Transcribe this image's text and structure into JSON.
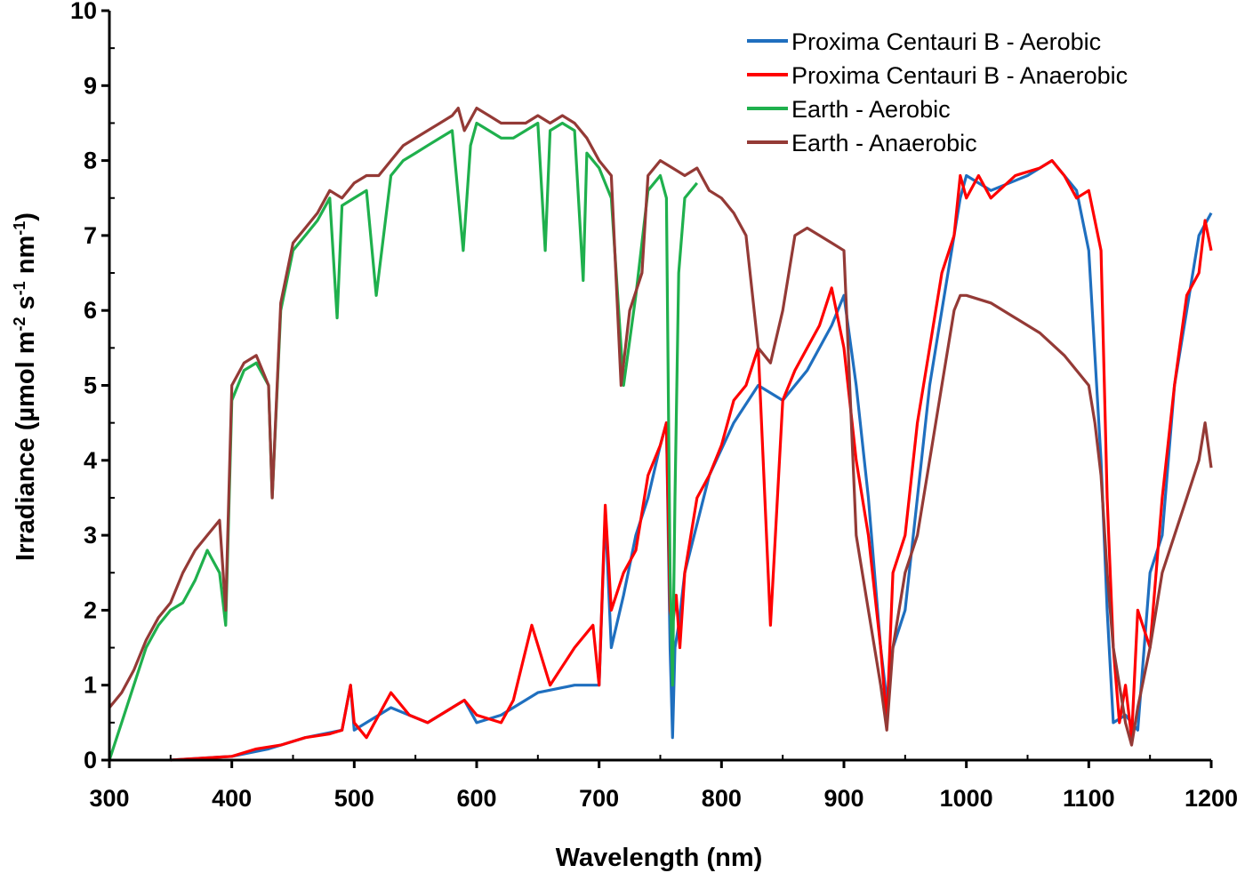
{
  "chart_data": {
    "type": "line",
    "title": "",
    "xlabel": "Wavelength (nm)",
    "ylabel_parts": [
      "Irradiance (µmol m",
      "-2",
      " s",
      "-1",
      " nm",
      "-1",
      ")"
    ],
    "xlim": [
      300,
      1200
    ],
    "ylim": [
      0,
      10
    ],
    "x_ticks": [
      300,
      400,
      500,
      600,
      700,
      800,
      900,
      1000,
      1100,
      1200
    ],
    "y_ticks": [
      0,
      1,
      2,
      3,
      4,
      5,
      6,
      7,
      8,
      9,
      10
    ],
    "grid": false,
    "legend_position": "top-right",
    "series": [
      {
        "name": "Proxima Centauri B - Aerobic",
        "color": "#1f6fbf",
        "x": [
          350,
          400,
          430,
          460,
          490,
          497,
          500,
          530,
          560,
          590,
          600,
          620,
          650,
          680,
          700,
          705,
          710,
          720,
          730,
          740,
          750,
          755,
          758,
          760,
          762,
          765,
          770,
          790,
          810,
          830,
          850,
          870,
          890,
          900,
          910,
          920,
          930,
          935,
          940,
          950,
          960,
          970,
          980,
          995,
          1000,
          1020,
          1050,
          1070,
          1090,
          1100,
          1110,
          1115,
          1120,
          1130,
          1140,
          1150,
          1160,
          1170,
          1180,
          1190,
          1200
        ],
        "y": [
          0,
          0.05,
          0.15,
          0.3,
          0.4,
          1.0,
          0.4,
          0.7,
          0.5,
          0.8,
          0.5,
          0.6,
          0.9,
          1.0,
          1.0,
          3.3,
          1.5,
          2.2,
          3.0,
          3.5,
          4.2,
          4.5,
          1.5,
          0.3,
          1.5,
          1.8,
          2.5,
          3.8,
          4.5,
          5.0,
          4.8,
          5.2,
          5.8,
          6.2,
          5.0,
          3.5,
          1.5,
          0.8,
          1.5,
          2.0,
          3.5,
          5.0,
          6.0,
          7.5,
          7.8,
          7.6,
          7.8,
          8.0,
          7.6,
          6.8,
          4.0,
          2.0,
          0.5,
          0.6,
          0.4,
          2.5,
          3.0,
          5.0,
          6.0,
          7.0,
          7.3
        ]
      },
      {
        "name": "Proxima Centauri B - Anaerobic",
        "color": "#ff0000",
        "x": [
          350,
          380,
          400,
          420,
          440,
          460,
          480,
          490,
          497,
          500,
          510,
          530,
          545,
          560,
          580,
          590,
          600,
          620,
          630,
          645,
          660,
          680,
          695,
          700,
          705,
          710,
          720,
          730,
          740,
          750,
          755,
          758,
          760,
          763,
          766,
          770,
          780,
          790,
          800,
          810,
          820,
          830,
          840,
          850,
          860,
          870,
          880,
          890,
          900,
          910,
          920,
          930,
          935,
          940,
          950,
          960,
          970,
          980,
          990,
          995,
          1000,
          1010,
          1020,
          1040,
          1060,
          1070,
          1080,
          1090,
          1100,
          1110,
          1115,
          1120,
          1125,
          1130,
          1135,
          1140,
          1150,
          1160,
          1170,
          1180,
          1190,
          1195,
          1200
        ],
        "y": [
          0,
          0.03,
          0.05,
          0.15,
          0.2,
          0.3,
          0.35,
          0.4,
          1.0,
          0.5,
          0.3,
          0.9,
          0.6,
          0.5,
          0.7,
          0.8,
          0.6,
          0.5,
          0.8,
          1.8,
          1.0,
          1.5,
          1.8,
          1.0,
          3.4,
          2.0,
          2.5,
          2.8,
          3.8,
          4.2,
          4.5,
          2.0,
          1.8,
          2.2,
          1.5,
          2.5,
          3.5,
          3.8,
          4.2,
          4.8,
          5.0,
          5.5,
          1.8,
          4.8,
          5.2,
          5.5,
          5.8,
          6.3,
          5.5,
          4.0,
          3.0,
          1.5,
          0.5,
          2.5,
          3.0,
          4.5,
          5.5,
          6.5,
          7.0,
          7.8,
          7.5,
          7.8,
          7.5,
          7.8,
          7.9,
          8.0,
          7.8,
          7.5,
          7.6,
          6.8,
          3.5,
          1.5,
          0.5,
          1.0,
          0.3,
          2.0,
          1.5,
          3.5,
          5.0,
          6.2,
          6.5,
          7.2,
          6.8
        ]
      },
      {
        "name": "Earth - Aerobic",
        "color": "#1fb04d",
        "x": [
          300,
          310,
          320,
          330,
          340,
          350,
          360,
          370,
          380,
          390,
          395,
          400,
          410,
          420,
          430,
          433,
          440,
          450,
          460,
          470,
          480,
          486,
          490,
          500,
          510,
          518,
          530,
          540,
          550,
          560,
          570,
          580,
          589,
          595,
          600,
          610,
          620,
          630,
          640,
          650,
          656,
          660,
          670,
          680,
          687,
          690,
          700,
          710,
          720,
          730,
          740,
          750,
          755,
          758,
          760,
          762,
          765,
          770,
          780
        ],
        "y": [
          0.0,
          0.5,
          1.0,
          1.5,
          1.8,
          2.0,
          2.1,
          2.4,
          2.8,
          2.5,
          1.8,
          4.8,
          5.2,
          5.3,
          5.0,
          3.5,
          6.0,
          6.8,
          7.0,
          7.2,
          7.5,
          5.9,
          7.4,
          7.5,
          7.6,
          6.2,
          7.8,
          8.0,
          8.1,
          8.2,
          8.3,
          8.4,
          6.8,
          8.2,
          8.5,
          8.4,
          8.3,
          8.3,
          8.4,
          8.5,
          6.8,
          8.4,
          8.5,
          8.4,
          6.4,
          8.1,
          7.9,
          7.5,
          5.0,
          6.2,
          7.6,
          7.8,
          7.5,
          2.5,
          1.0,
          3.5,
          6.5,
          7.5,
          7.7
        ]
      },
      {
        "name": "Earth - Anaerobic",
        "color": "#943a36",
        "x": [
          300,
          310,
          320,
          330,
          340,
          350,
          360,
          370,
          380,
          390,
          395,
          400,
          410,
          420,
          430,
          433,
          440,
          450,
          460,
          470,
          480,
          490,
          500,
          510,
          520,
          530,
          540,
          550,
          560,
          570,
          580,
          585,
          590,
          600,
          610,
          620,
          630,
          640,
          650,
          660,
          670,
          680,
          690,
          700,
          710,
          718,
          725,
          735,
          740,
          750,
          760,
          770,
          780,
          790,
          800,
          810,
          820,
          830,
          840,
          850,
          860,
          870,
          880,
          890,
          900,
          910,
          920,
          930,
          935,
          940,
          950,
          960,
          970,
          980,
          990,
          995,
          1000,
          1020,
          1040,
          1060,
          1080,
          1100,
          1105,
          1110,
          1115,
          1120,
          1130,
          1135,
          1140,
          1150,
          1160,
          1170,
          1180,
          1190,
          1195,
          1200
        ],
        "y": [
          0.7,
          0.9,
          1.2,
          1.6,
          1.9,
          2.1,
          2.5,
          2.8,
          3.0,
          3.2,
          2.0,
          5.0,
          5.3,
          5.4,
          5.0,
          3.5,
          6.1,
          6.9,
          7.1,
          7.3,
          7.6,
          7.5,
          7.7,
          7.8,
          7.8,
          8.0,
          8.2,
          8.3,
          8.4,
          8.5,
          8.6,
          8.7,
          8.4,
          8.7,
          8.6,
          8.5,
          8.5,
          8.5,
          8.6,
          8.5,
          8.6,
          8.5,
          8.3,
          8.0,
          7.8,
          5.0,
          6.0,
          6.5,
          7.8,
          8.0,
          7.9,
          7.8,
          7.9,
          7.6,
          7.5,
          7.3,
          7.0,
          5.5,
          5.3,
          6.0,
          7.0,
          7.1,
          7.0,
          6.9,
          6.8,
          3.0,
          2.0,
          1.0,
          0.4,
          1.5,
          2.5,
          3.0,
          4.0,
          5.0,
          6.0,
          6.2,
          6.2,
          6.1,
          5.9,
          5.7,
          5.4,
          5.0,
          4.5,
          3.8,
          2.5,
          1.5,
          0.5,
          0.2,
          0.7,
          1.5,
          2.5,
          3.0,
          3.5,
          4.0,
          4.5,
          3.9
        ]
      }
    ]
  }
}
